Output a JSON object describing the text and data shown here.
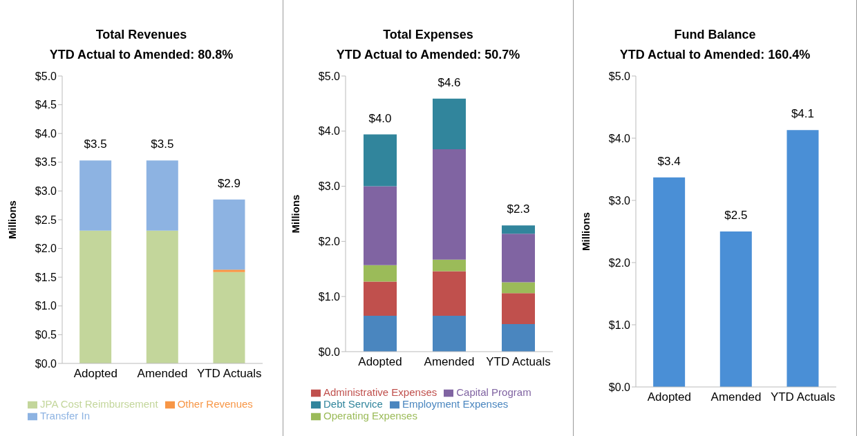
{
  "chart_data": [
    {
      "type": "bar",
      "title": "Total Revenues",
      "subtitle": "YTD Actual to Amended: 80.8%",
      "ylabel": "Millions",
      "categories": [
        "Adopted",
        "Amended",
        "YTD Actuals"
      ],
      "stacked": true,
      "series": [
        {
          "name": "JPA Cost Reimbursement",
          "color": "#c3d69b",
          "values": [
            2.31,
            2.31,
            1.59
          ]
        },
        {
          "name": "Other Revenues",
          "color": "#f79646",
          "values": [
            0,
            0,
            0.04
          ]
        },
        {
          "name": "Transfer In",
          "color": "#8db3e2",
          "values": [
            1.22,
            1.22,
            1.22
          ]
        }
      ],
      "totals": [
        "$3.5",
        "$3.5",
        "$2.9"
      ],
      "ylim": [
        0,
        5
      ],
      "yticks": [
        {
          "value": 0,
          "label": "$0.0"
        },
        {
          "value": 0.5,
          "label": "$0.5"
        },
        {
          "value": 1,
          "label": "$1.0"
        },
        {
          "value": 1.5,
          "label": "$1.5"
        },
        {
          "value": 2,
          "label": "$2.0"
        },
        {
          "value": 2.5,
          "label": "$2.5"
        },
        {
          "value": 3,
          "label": "$3.0"
        },
        {
          "value": 3.5,
          "label": "$3.5"
        },
        {
          "value": 4,
          "label": "$4.0"
        },
        {
          "value": 4.5,
          "label": "$4.5"
        },
        {
          "value": 5,
          "label": "$5.0"
        }
      ],
      "legend": "bottom"
    },
    {
      "type": "bar",
      "title": "Total Expenses",
      "subtitle": "YTD Actual to Amended: 50.7%",
      "ylabel": "Millions",
      "categories": [
        "Adopted",
        "Amended",
        "YTD Actuals"
      ],
      "stacked": true,
      "series": [
        {
          "name": "Employment Expenses",
          "color": "#4a86bf",
          "values": [
            0.65,
            0.65,
            0.5
          ]
        },
        {
          "name": "Administrative Expenses",
          "color": "#c0504d",
          "values": [
            0.62,
            0.81,
            0.56
          ]
        },
        {
          "name": "Operating Expenses",
          "color": "#9bbb59",
          "values": [
            0.3,
            0.21,
            0.2
          ]
        },
        {
          "name": "Capital Program",
          "color": "#8064a2",
          "values": [
            1.43,
            2.0,
            0.88
          ]
        },
        {
          "name": "Debt Service",
          "color": "#31859c",
          "values": [
            0.94,
            0.92,
            0.15
          ]
        }
      ],
      "totals": [
        "$4.0",
        "$4.6",
        "$2.3"
      ],
      "ylim": [
        0,
        5
      ],
      "yticks": [
        {
          "value": 0,
          "label": "$0.0"
        },
        {
          "value": 1,
          "label": "$1.0"
        },
        {
          "value": 2,
          "label": "$2.0"
        },
        {
          "value": 3,
          "label": "$3.0"
        },
        {
          "value": 4,
          "label": "$4.0"
        },
        {
          "value": 5,
          "label": "$5.0"
        }
      ],
      "legend": "bottom"
    },
    {
      "type": "bar",
      "title": "Fund Balance",
      "subtitle": "YTD Actual to Amended: 160.4%",
      "ylabel": "Millions",
      "categories": [
        "Adopted",
        "Amended",
        "YTD Actuals"
      ],
      "values": [
        3.37,
        2.5,
        4.13
      ],
      "color": "#4a8fd6",
      "value_labels": [
        "$3.4",
        "$2.5",
        "$4.1"
      ],
      "ylim": [
        0,
        5
      ],
      "yticks": [
        {
          "value": 0,
          "label": "$0.0"
        },
        {
          "value": 1,
          "label": "$1.0"
        },
        {
          "value": 2,
          "label": "$2.0"
        },
        {
          "value": 3,
          "label": "$3.0"
        },
        {
          "value": 4,
          "label": "$4.0"
        },
        {
          "value": 5,
          "label": "$5.0"
        }
      ]
    }
  ]
}
